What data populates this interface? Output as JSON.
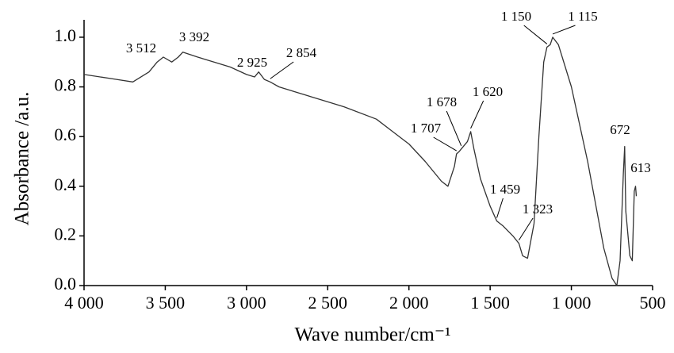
{
  "chart_data": {
    "type": "line",
    "x_label": "Wave number/cm⁻¹",
    "y_label": "Absorbance /a.u.",
    "xlim": [
      4000,
      500
    ],
    "ylim": [
      0,
      1.07
    ],
    "xticks": [
      {
        "value": 4000,
        "label": "4 000"
      },
      {
        "value": 3500,
        "label": "3 500"
      },
      {
        "value": 3000,
        "label": "3 000"
      },
      {
        "value": 2500,
        "label": "2 500"
      },
      {
        "value": 2000,
        "label": "2 000"
      },
      {
        "value": 1500,
        "label": "1 500"
      },
      {
        "value": 1000,
        "label": "1 000"
      },
      500
    ],
    "yticks": [
      {
        "value": 0,
        "label": "0.0"
      },
      0.2,
      0.4,
      0.6,
      0.8,
      {
        "value": 1,
        "label": "1.0"
      }
    ],
    "grid": false,
    "series": [
      {
        "color": "#333333",
        "x": [
          4000,
          3800,
          3700,
          3600,
          3550,
          3512,
          3460,
          3420,
          3392,
          3300,
          3200,
          3100,
          3000,
          2950,
          2925,
          2890,
          2854,
          2800,
          2600,
          2400,
          2200,
          2100,
          2000,
          1900,
          1800,
          1760,
          1720,
          1707,
          1690,
          1678,
          1640,
          1620,
          1600,
          1560,
          1500,
          1459,
          1420,
          1360,
          1323,
          1300,
          1270,
          1230,
          1200,
          1170,
          1150,
          1130,
          1115,
          1080,
          1000,
          900,
          800,
          750,
          720,
          700,
          680,
          672,
          665,
          640,
          625,
          613,
          605,
          600
        ],
        "values": [
          0.85,
          0.83,
          0.82,
          0.86,
          0.9,
          0.92,
          0.9,
          0.92,
          0.94,
          0.92,
          0.9,
          0.88,
          0.85,
          0.84,
          0.86,
          0.83,
          0.82,
          0.8,
          0.76,
          0.72,
          0.67,
          0.62,
          0.57,
          0.5,
          0.42,
          0.4,
          0.48,
          0.53,
          0.54,
          0.55,
          0.58,
          0.62,
          0.55,
          0.43,
          0.32,
          0.26,
          0.24,
          0.2,
          0.17,
          0.12,
          0.11,
          0.25,
          0.6,
          0.9,
          0.96,
          0.97,
          1.0,
          0.97,
          0.8,
          0.5,
          0.15,
          0.03,
          0.0,
          0.1,
          0.45,
          0.56,
          0.3,
          0.12,
          0.1,
          0.38,
          0.4,
          0.36
        ]
      }
    ],
    "annotations": [
      {
        "text": "3 512",
        "x": 3512,
        "y": 0.92
      },
      {
        "text": "3 392",
        "x": 3392,
        "y": 0.94
      },
      {
        "text": "2 925",
        "x": 2925,
        "y": 0.86
      },
      {
        "text": "2 854",
        "x": 2854,
        "y": 0.82
      },
      {
        "text": "1 707",
        "x": 1707,
        "y": 0.53
      },
      {
        "text": "1 678",
        "x": 1678,
        "y": 0.55
      },
      {
        "text": "1 620",
        "x": 1620,
        "y": 0.62
      },
      {
        "text": "1 459",
        "x": 1459,
        "y": 0.26
      },
      {
        "text": "1 323",
        "x": 1323,
        "y": 0.17
      },
      {
        "text": "1 150",
        "x": 1150,
        "y": 0.96
      },
      {
        "text": "1 115",
        "x": 1115,
        "y": 1.0
      },
      {
        "text": "672",
        "x": 672,
        "y": 0.56
      },
      {
        "text": "613",
        "x": 613,
        "y": 0.38
      }
    ]
  }
}
